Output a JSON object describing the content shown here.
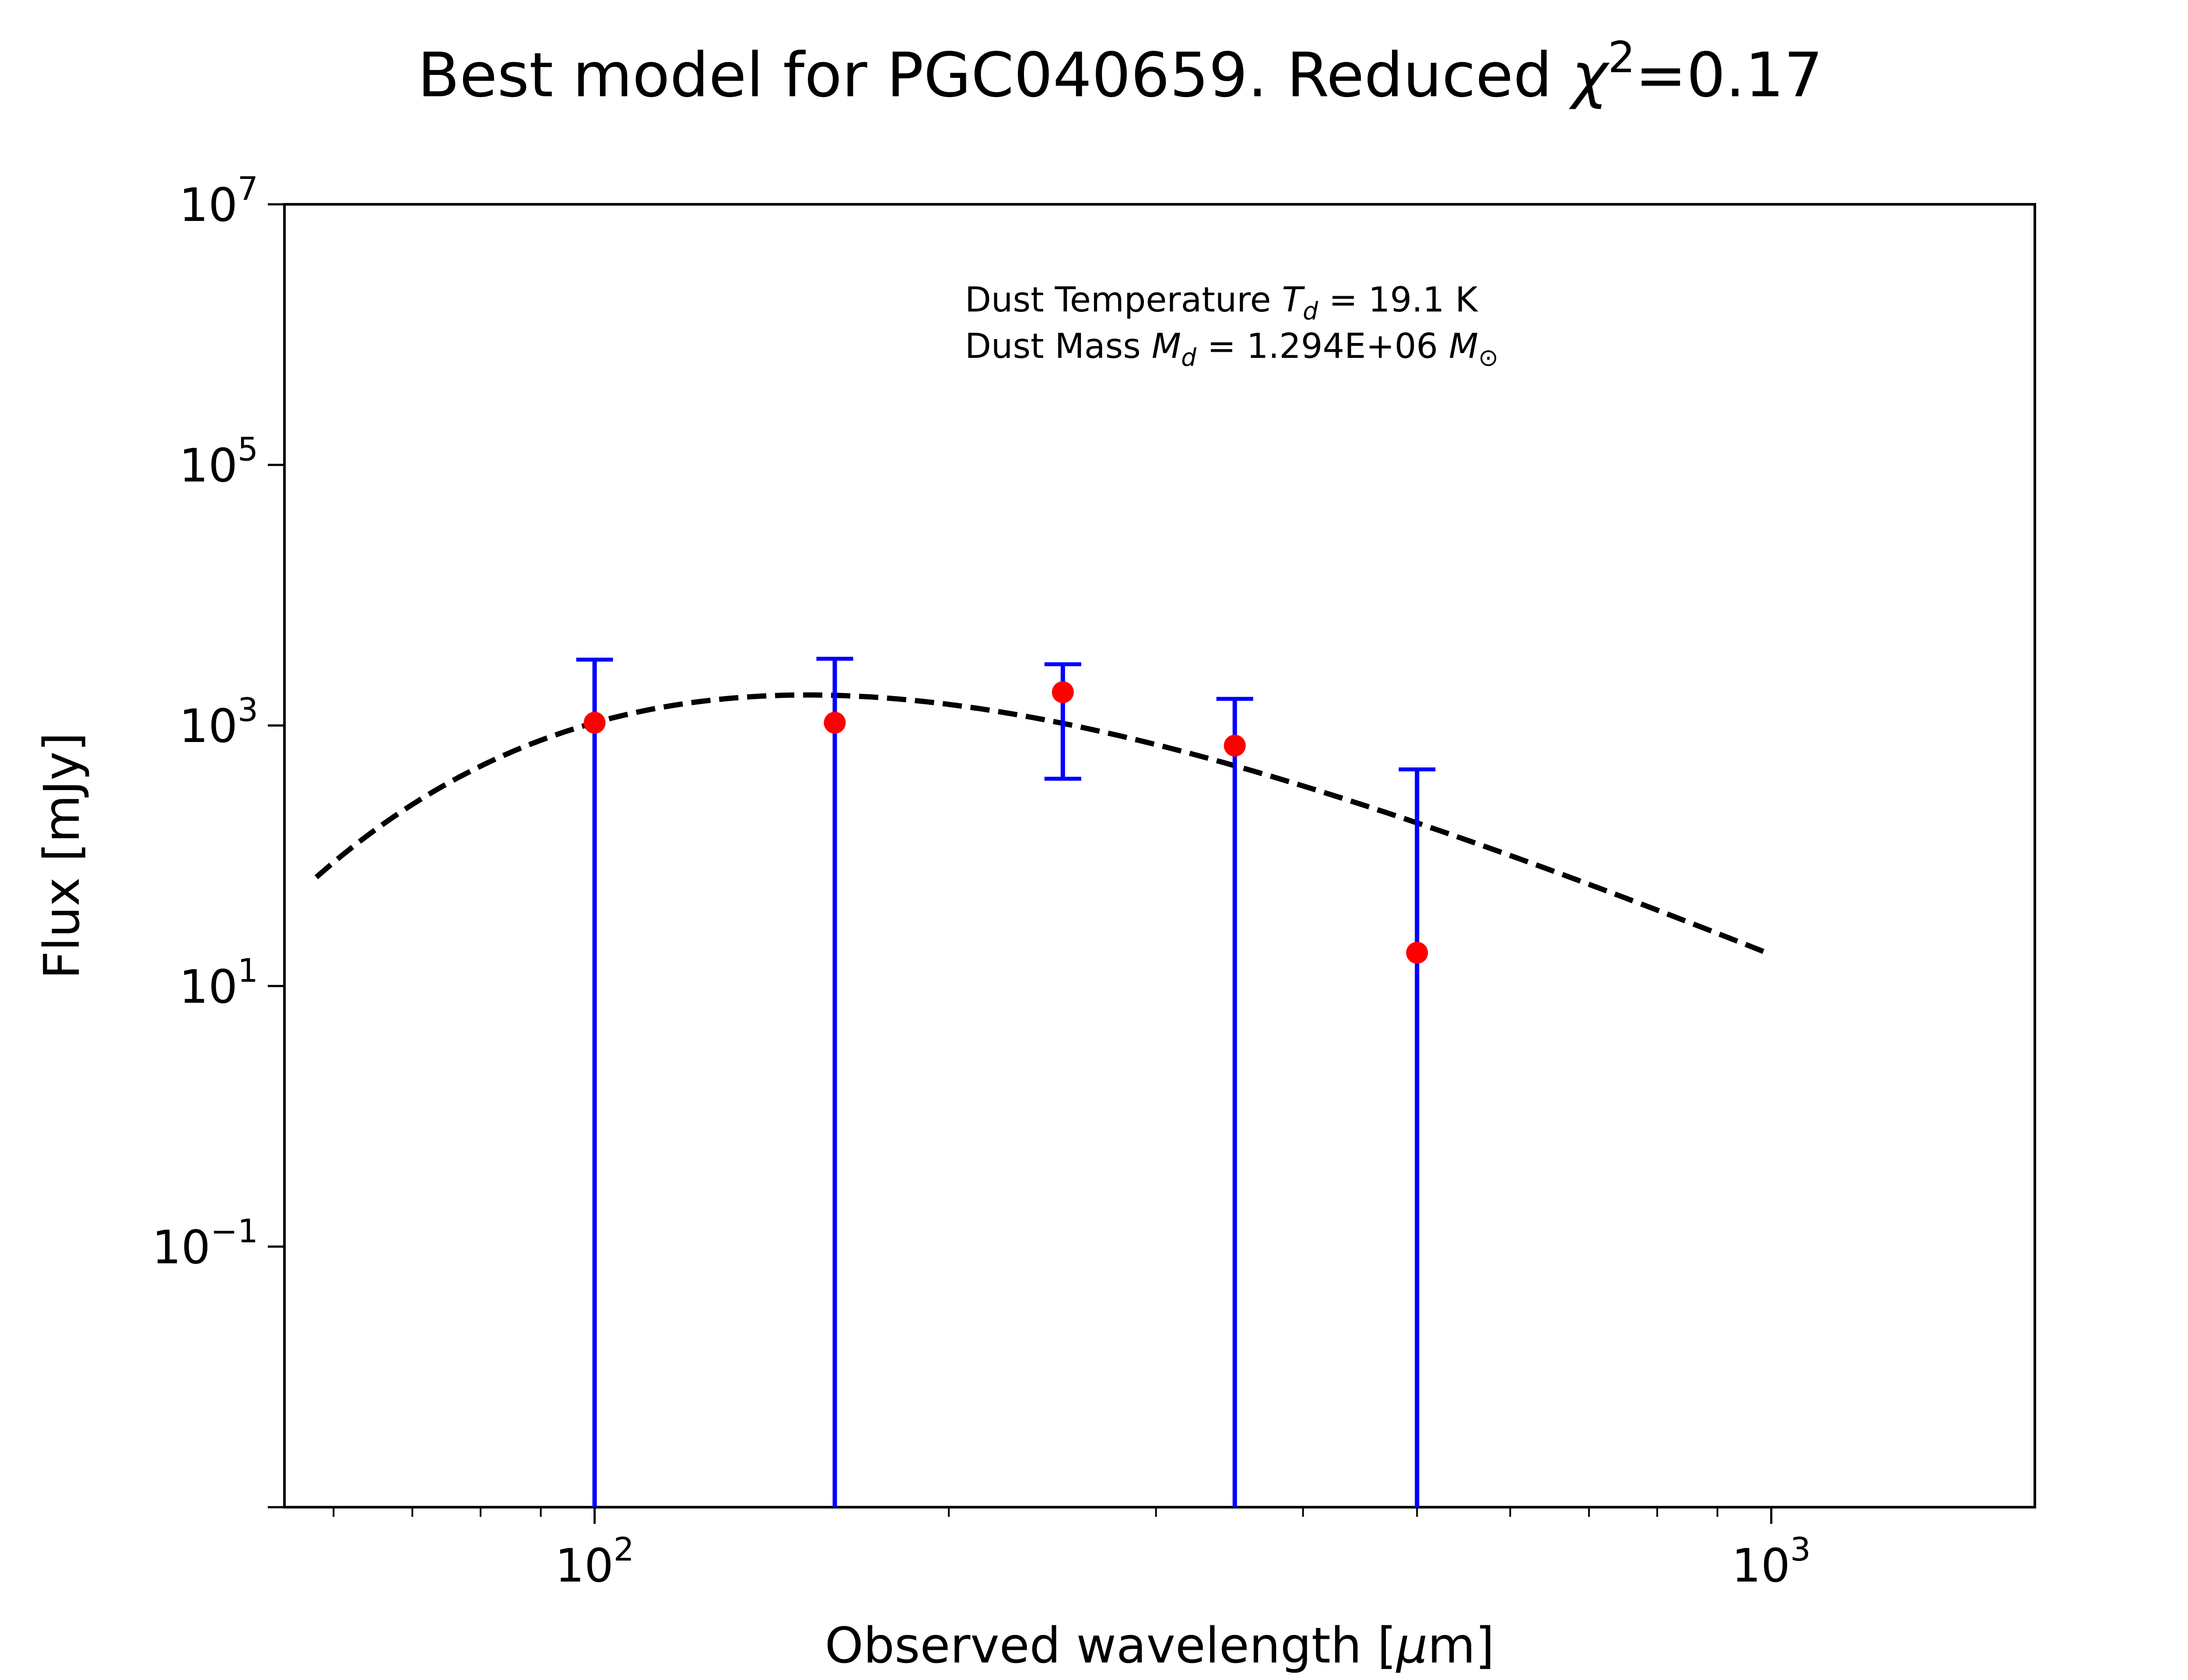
{
  "chart_data": {
    "type": "scatter",
    "title": {
      "text": "Best model for PGC040659. Reduced ",
      "symbol": "χ",
      "exponent": "2",
      "suffix": "=0.17"
    },
    "xlabel": {
      "text": "Observed wavelength [",
      "symbol": "μ",
      "suffix": "m]"
    },
    "ylabel": "Flux [mJy]",
    "x_scale": "log",
    "y_scale": "log",
    "xlim": [
      54.5,
      1675
    ],
    "ylim": [
      0.001,
      10000000
    ],
    "x_ticks": [
      {
        "value": 100,
        "base": "10",
        "exp": "2"
      },
      {
        "value": 1000,
        "base": "10",
        "exp": "3"
      }
    ],
    "y_ticks": [
      {
        "value": 0.1,
        "base": "10",
        "exp": "−1"
      },
      {
        "value": 10,
        "base": "10",
        "exp": "1"
      },
      {
        "value": 1000,
        "base": "10",
        "exp": "3"
      },
      {
        "value": 100000,
        "base": "10",
        "exp": "5"
      },
      {
        "value": 10000000,
        "base": "10",
        "exp": "7"
      }
    ],
    "grid": false,
    "annotations": {
      "line1": {
        "prefix": "Dust Temperature ",
        "symbol": "T",
        "sub": "d",
        "suffix": " = 19.1 K"
      },
      "line2": {
        "prefix": "Dust Mass ",
        "symbol": "M",
        "sub": "d",
        "middle": " = 1.294E+06 ",
        "unit_symbol": "M",
        "unit_sub": "⊙"
      }
    },
    "series": [
      {
        "kind": "data_points",
        "marker_color": "#ff0000",
        "errorbar_color": "#0000ff",
        "points": [
          {
            "x": 100,
            "y": 1050,
            "y_lower": 0.001,
            "y_upper": 3200
          },
          {
            "x": 160,
            "y": 1050,
            "y_lower": 0.001,
            "y_upper": 3250
          },
          {
            "x": 250,
            "y": 1800,
            "y_lower": 390,
            "y_upper": 2950
          },
          {
            "x": 350,
            "y": 700,
            "y_lower": 0.001,
            "y_upper": 1600
          },
          {
            "x": 500,
            "y": 18,
            "y_lower": 0.001,
            "y_upper": 460
          }
        ]
      },
      {
        "kind": "model",
        "color": "#000000",
        "line_style": "dashed",
        "x_range": [
          58,
          1000
        ],
        "temperature_K": 19.1
      }
    ]
  }
}
